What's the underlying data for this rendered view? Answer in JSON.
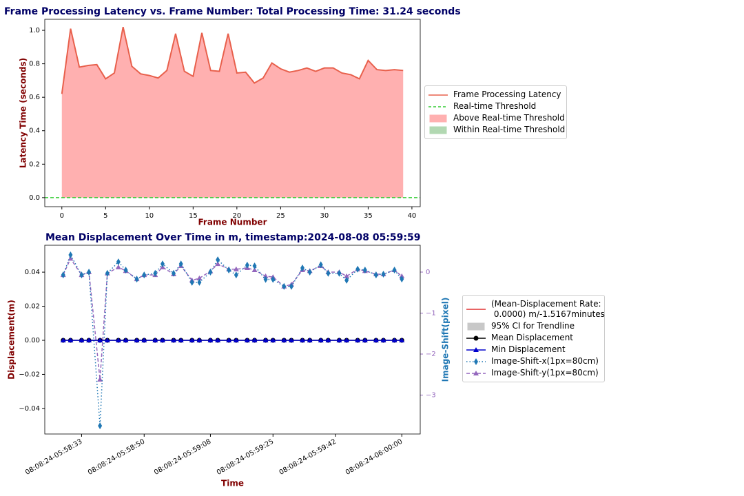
{
  "chart_data": [
    {
      "type": "area",
      "title": "Frame Processing Latency vs. Frame Number: Total Processing Time: 31.24 seconds",
      "x_label": "Frame Number",
      "y_label": "Latency Time (seconds)",
      "x": [
        0,
        1,
        2,
        3,
        4,
        5,
        6,
        7,
        8,
        9,
        10,
        11,
        12,
        13,
        14,
        15,
        16,
        17,
        18,
        19,
        20,
        21,
        22,
        23,
        24,
        25,
        26,
        27,
        28,
        29,
        30,
        31,
        32,
        33,
        34,
        35,
        36,
        37,
        38,
        39
      ],
      "series": [
        {
          "name": "Frame Processing Latency",
          "color": "#e8604c",
          "values": [
            0.62,
            1.01,
            0.78,
            0.79,
            0.795,
            0.71,
            0.745,
            1.02,
            0.785,
            0.74,
            0.73,
            0.715,
            0.76,
            0.98,
            0.755,
            0.725,
            0.985,
            0.76,
            0.755,
            0.98,
            0.745,
            0.75,
            0.685,
            0.715,
            0.805,
            0.77,
            0.75,
            0.76,
            0.775,
            0.755,
            0.775,
            0.775,
            0.745,
            0.735,
            0.71,
            0.82,
            0.765,
            0.76,
            0.765,
            0.76
          ]
        }
      ],
      "threshold": {
        "name": "Real-time Threshold",
        "value": 0,
        "color": "#33cc33"
      },
      "fills": [
        {
          "name": "Above Real-time Threshold",
          "color": "#ffb0b0"
        },
        {
          "name": "Within Real-time Threshold",
          "color": "#b2d8b2"
        }
      ],
      "xlim": [
        -1.95,
        40.95
      ],
      "xticks": [
        0,
        5,
        10,
        15,
        20,
        25,
        30,
        35,
        40
      ],
      "ylim": [
        -0.054,
        1.066
      ],
      "yticks": [
        {
          "value": 0,
          "label": "0.0"
        },
        {
          "value": 0.2,
          "label": "0.2"
        },
        {
          "value": 0.4,
          "label": "0.4"
        },
        {
          "value": 0.6,
          "label": "0.6"
        },
        {
          "value": 0.8,
          "label": "0.8"
        },
        {
          "value": 1,
          "label": "1.0"
        }
      ]
    },
    {
      "type": "line",
      "title": "Mean Displacement Over Time in m, timestamp:2024-08-08 05:59:59",
      "x_label": "Time",
      "y_label": "Displacement(m)",
      "y2_label": "Image-Shift(pixel)",
      "x": [
        "08:08:24-05:58:28",
        "08:08:24-05:58:30",
        "08:08:24-05:58:33",
        "08:08:24-05:58:35",
        "08:08:24-05:58:38",
        "08:08:24-05:58:40",
        "08:08:24-05:58:43",
        "08:08:24-05:58:45",
        "08:08:24-05:58:48",
        "08:08:24-05:58:50",
        "08:08:24-05:58:53",
        "08:08:24-05:58:55",
        "08:08:24-05:58:58",
        "08:08:24-05:59:00",
        "08:08:24-05:59:03",
        "08:08:24-05:59:05",
        "08:08:24-05:59:08",
        "08:08:24-05:59:10",
        "08:08:24-05:59:13",
        "08:08:24-05:59:15",
        "08:08:24-05:59:18",
        "08:08:24-05:59:20",
        "08:08:24-05:59:23",
        "08:08:24-05:59:25",
        "08:08:24-05:59:28",
        "08:08:24-05:59:30",
        "08:08:24-05:59:33",
        "08:08:24-05:59:35",
        "08:08:24-05:59:38",
        "08:08:24-05:59:40",
        "08:08:24-05:59:43",
        "08:08:24-05:59:45",
        "08:08:24-05:59:48",
        "08:08:24-05:59:50",
        "08:08:24-05:59:53",
        "08:08:24-05:59:55",
        "08:08:24-05:59:58",
        "08:08:24-06:00:00"
      ],
      "trendline": {
        "name": "(Mean-Displacement Rate:\n 0.0000) m/-1.5167minutes",
        "color": "#e03030"
      },
      "ci": {
        "name": "95% CI for Trendline",
        "color": "#c8c8c8"
      },
      "series": [
        {
          "name": "Mean Displacement",
          "color": "#000000",
          "marker": "circle",
          "dash": "solid",
          "values": [
            0,
            0,
            0,
            0,
            0,
            0,
            0,
            0,
            0,
            0,
            0,
            0,
            0,
            0,
            0,
            0,
            0,
            0,
            0,
            0,
            0,
            0,
            0,
            0,
            0,
            0,
            0,
            0,
            0,
            0,
            0,
            0,
            0,
            0,
            0,
            0,
            0,
            0
          ]
        },
        {
          "name": "Min Displacement",
          "color": "#0000cc",
          "marker": "triangle",
          "dash": "solid",
          "values": [
            0,
            0,
            0,
            0,
            0,
            0,
            0,
            0,
            0,
            0,
            0,
            0,
            0,
            0,
            0,
            0,
            0,
            0,
            0,
            0,
            0,
            0,
            0,
            0,
            0,
            0,
            0,
            0,
            0,
            0,
            0,
            0,
            0,
            0,
            0,
            0,
            0,
            0
          ]
        },
        {
          "name": "Image-Shift-x(1px=80cm)",
          "color": "#1f77b4",
          "marker": "diamond",
          "dash": "dotted",
          "axis": "y2",
          "values": [
            -0.07,
            0.42,
            -0.07,
            0.0,
            -3.75,
            -0.03,
            0.25,
            0.05,
            -0.17,
            -0.07,
            -0.03,
            0.2,
            -0.03,
            0.2,
            -0.25,
            -0.25,
            0.0,
            0.3,
            0.05,
            -0.07,
            0.17,
            0.15,
            -0.18,
            -0.18,
            -0.35,
            -0.35,
            0.1,
            0.0,
            0.18,
            -0.03,
            -0.03,
            -0.2,
            0.07,
            0.05,
            -0.07,
            -0.05,
            0.05,
            -0.17
          ]
        },
        {
          "name": "Image-Shift-y(1px=80cm)",
          "color": "#9467bd",
          "marker": "triangle",
          "dash": "dashed",
          "axis": "y2",
          "values": [
            -0.07,
            0.33,
            -0.07,
            0.0,
            -2.62,
            -0.03,
            0.12,
            0.03,
            -0.17,
            -0.07,
            -0.07,
            0.12,
            -0.05,
            0.15,
            -0.2,
            -0.15,
            0.02,
            0.2,
            0.07,
            0.07,
            0.1,
            0.05,
            -0.1,
            -0.12,
            -0.35,
            -0.3,
            0.05,
            0.03,
            0.15,
            0.0,
            0.0,
            -0.1,
            0.07,
            0.03,
            -0.05,
            -0.05,
            0.05,
            -0.1
          ]
        }
      ],
      "xlim": [
        "08:08:24-05:58:23",
        "08:08:24-06:00:05"
      ],
      "xticks": [
        "08:08:24-05:58:33",
        "08:08:24-05:58:50",
        "08:08:24-05:59:08",
        "08:08:24-05:59:25",
        "08:08:24-05:59:42",
        "08:08:24-06:00:00"
      ],
      "ylim": [
        -0.055,
        0.0558
      ],
      "yticks": [
        {
          "value": -0.04,
          "label": "−0.04"
        },
        {
          "value": -0.02,
          "label": "−0.02"
        },
        {
          "value": 0,
          "label": "0.00"
        },
        {
          "value": 0.02,
          "label": "0.02"
        },
        {
          "value": 0.04,
          "label": "0.04"
        }
      ],
      "y2lim": [
        -3.95,
        0.655
      ],
      "y2ticks": [
        {
          "value": -3,
          "label": "−3"
        },
        {
          "value": -2,
          "label": "−2"
        },
        {
          "value": -1,
          "label": "−1"
        },
        0
      ]
    }
  ]
}
